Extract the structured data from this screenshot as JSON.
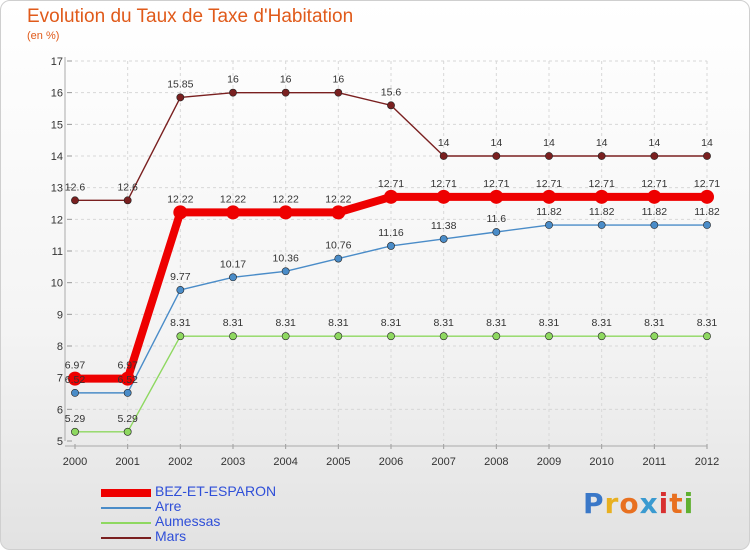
{
  "title": "Evolution du Taux de Taxe d'Habitation",
  "subtitle": "(en %)",
  "logo": {
    "text": "Proxiti",
    "colors": [
      "#3a78c8",
      "#e8b020",
      "#e87020",
      "#3a9ad0",
      "#d83030",
      "#e87020",
      "#60b030"
    ]
  },
  "chart_data": {
    "type": "line",
    "title": "Evolution du Taux de Taxe d'Habitation",
    "subtitle": "(en %)",
    "xlabel": "",
    "ylabel": "",
    "x": [
      "2000",
      "2001",
      "2002",
      "2003",
      "2004",
      "2005",
      "2006",
      "2007",
      "2008",
      "2009",
      "2010",
      "2011",
      "2012"
    ],
    "ylim": [
      5,
      17
    ],
    "yticks": [
      "5",
      "6",
      "7",
      "8",
      "9",
      "10",
      "11",
      "12",
      "13",
      "14",
      "15",
      "16",
      "17"
    ],
    "grid": true,
    "legend_position": "bottom-left",
    "series": [
      {
        "name": "BEZ-ET-ESPARON",
        "color": "#ee0000",
        "values": [
          6.97,
          6.97,
          12.22,
          12.22,
          12.22,
          12.22,
          12.71,
          12.71,
          12.71,
          12.71,
          12.71,
          12.71,
          12.71
        ],
        "labels": [
          "6.97",
          "6.97",
          "12.22",
          "12.22",
          "12.22",
          "12.22",
          "12.71",
          "12.71",
          "12.71",
          "12.71",
          "12.71",
          "12.71",
          "12.71"
        ]
      },
      {
        "name": "Arre",
        "color": "#4a8cc8",
        "values": [
          6.52,
          6.52,
          9.77,
          10.17,
          10.36,
          10.76,
          11.16,
          11.38,
          11.6,
          11.82,
          11.82,
          11.82,
          11.82
        ],
        "labels": [
          "6.52",
          "6.52",
          "9.77",
          "10.17",
          "10.36",
          "10.76",
          "11.16",
          "11.38",
          "11.6",
          "11.82",
          "11.82",
          "11.82",
          "11.82"
        ]
      },
      {
        "name": "Aumessas",
        "color": "#8ed860",
        "values": [
          5.29,
          5.29,
          8.31,
          8.31,
          8.31,
          8.31,
          8.31,
          8.31,
          8.31,
          8.31,
          8.31,
          8.31,
          8.31
        ],
        "labels": [
          "5.29",
          "5.29",
          "8.31",
          "8.31",
          "8.31",
          "8.31",
          "8.31",
          "8.31",
          "8.31",
          "8.31",
          "8.31",
          "8.31",
          "8.31"
        ]
      },
      {
        "name": "Mars",
        "color": "#7a2020",
        "values": [
          12.6,
          12.6,
          15.85,
          16,
          16,
          16,
          15.6,
          14,
          14,
          14,
          14,
          14,
          14
        ],
        "labels": [
          "12.6",
          "12.6",
          "15.85",
          "16",
          "16",
          "16",
          "15.6",
          "14",
          "14",
          "14",
          "14",
          "14",
          "14"
        ]
      }
    ]
  }
}
